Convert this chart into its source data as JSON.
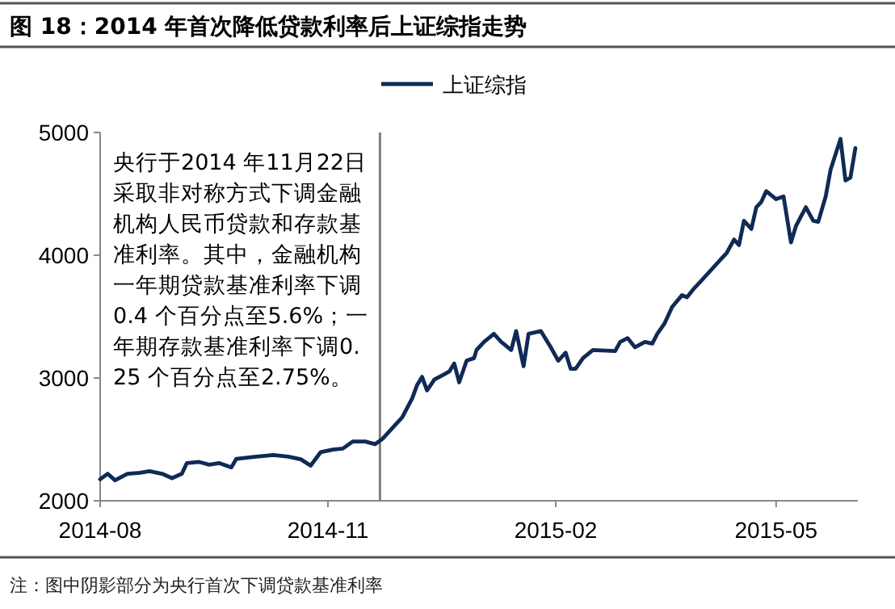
{
  "chart_data": {
    "type": "line",
    "title": "图 18：2014 年首次降低贷款利率后上证综指走势",
    "annotations": [
      "央行于2014 年11月22日采取非对称方式下调金融机构人民币贷款和存款基准利率。其中，金融机构一年期贷款基准利率下调0.4 个百分点至5.6%；一年期存款基准利率下调0.25 个百分点至2.75%。",
      "注：图中阴影部分为央行首次下调贷款基准利率"
    ],
    "x": [
      "2014-08-01",
      "2014-08-04",
      "2014-08-07",
      "2014-08-12",
      "2014-08-17",
      "2014-08-21",
      "2014-08-26",
      "2014-08-30",
      "2014-09-03",
      "2014-09-05",
      "2014-09-10",
      "2014-09-14",
      "2014-09-18",
      "2014-09-23",
      "2014-09-25",
      "2014-10-03",
      "2014-10-10",
      "2014-10-16",
      "2014-10-21",
      "2014-10-25",
      "2014-10-29",
      "2014-11-03",
      "2014-11-07",
      "2014-11-11",
      "2014-11-16",
      "2014-11-20",
      "2014-11-23",
      "2014-11-26",
      "2014-12-01",
      "2014-12-05",
      "2014-12-07",
      "2014-12-09",
      "2014-12-11",
      "2014-12-14",
      "2014-12-18",
      "2014-12-20",
      "2014-12-22",
      "2014-12-24",
      "2014-12-27",
      "2014-12-30",
      "2014-12-31",
      "2015-01-03",
      "2015-01-07",
      "2015-01-10",
      "2015-01-14",
      "2015-01-16",
      "2015-01-19",
      "2015-01-21",
      "2015-01-26",
      "2015-01-30",
      "2015-02-02",
      "2015-02-05",
      "2015-02-07",
      "2015-02-09",
      "2015-02-12",
      "2015-02-16",
      "2015-02-25",
      "2015-02-27",
      "2015-03-02",
      "2015-03-05",
      "2015-03-07",
      "2015-03-09",
      "2015-03-12",
      "2015-03-14",
      "2015-03-17",
      "2015-03-20",
      "2015-03-24",
      "2015-03-26",
      "2015-03-29",
      "2015-03-31",
      "2015-04-05",
      "2015-04-09",
      "2015-04-11",
      "2015-04-14",
      "2015-04-16",
      "2015-04-18",
      "2015-04-21",
      "2015-04-23",
      "2015-04-25",
      "2015-04-27",
      "2015-05-01",
      "2015-05-04",
      "2015-05-07",
      "2015-05-09",
      "2015-05-13",
      "2015-05-16",
      "2015-05-18",
      "2015-05-21",
      "2015-05-23",
      "2015-05-27",
      "2015-05-29",
      "2015-05-31",
      "2015-06-02"
    ],
    "series": [
      {
        "name": "上证综指",
        "color": "#0f2a55",
        "values": [
          2175,
          2220,
          2167,
          2220,
          2228,
          2241,
          2220,
          2184,
          2220,
          2307,
          2316,
          2294,
          2307,
          2272,
          2342,
          2360,
          2373,
          2360,
          2338,
          2286,
          2395,
          2417,
          2425,
          2483,
          2483,
          2461,
          2504,
          2570,
          2680,
          2833,
          2943,
          3009,
          2899,
          2987,
          3030,
          3053,
          3118,
          2965,
          3141,
          3162,
          3228,
          3294,
          3360,
          3294,
          3228,
          3382,
          3096,
          3360,
          3382,
          3250,
          3141,
          3206,
          3075,
          3075,
          3162,
          3228,
          3219,
          3294,
          3325,
          3250,
          3272,
          3294,
          3280,
          3360,
          3447,
          3579,
          3675,
          3658,
          3733,
          3776,
          3886,
          3974,
          4017,
          4128,
          4083,
          4280,
          4214,
          4391,
          4434,
          4522,
          4457,
          4478,
          4105,
          4237,
          4391,
          4280,
          4272,
          4478,
          4697,
          4947,
          4609,
          4632,
          4872
        ]
      }
    ],
    "xlim": [
      "2014-08-01",
      "2015-06-03"
    ],
    "xticks": [
      {
        "value": "2014-08-01",
        "label": "2014-08"
      },
      {
        "value": "2014-11-01",
        "label": "2014-11"
      },
      {
        "value": "2015-02-01",
        "label": "2015-02"
      },
      {
        "value": "2015-05-01",
        "label": "2015-05"
      }
    ],
    "ylim": [
      2000,
      5000
    ],
    "yticks": [
      2000,
      3000,
      4000,
      5000
    ],
    "ref_lines": [
      {
        "axis": "x",
        "value": "2014-11-22",
        "color": "#808080"
      }
    ],
    "legend": "top",
    "grid": false,
    "marker": "none",
    "line_style": "solid"
  }
}
